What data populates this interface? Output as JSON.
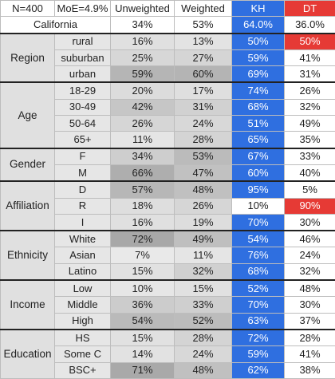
{
  "header": {
    "n": "N=400",
    "moe": "MoE=4.9%",
    "unweighted": "Unweighted",
    "weighted": "Weighted",
    "kh": "KH",
    "dt": "DT"
  },
  "california": {
    "label": "California",
    "unweighted": "34%",
    "weighted": "53%",
    "kh": "64.0%",
    "dt": "36.0%"
  },
  "groups": [
    {
      "name": "Region",
      "rows": [
        {
          "label": "rural",
          "unweighted": "16%",
          "weighted": "13%",
          "kh": "50%",
          "dt": "50%",
          "dt_hi": true
        },
        {
          "label": "suburban",
          "unweighted": "25%",
          "weighted": "27%",
          "kh": "59%",
          "dt": "41%"
        },
        {
          "label": "urban",
          "unweighted": "59%",
          "weighted": "60%",
          "kh": "69%",
          "dt": "31%"
        }
      ]
    },
    {
      "name": "Age",
      "rows": [
        {
          "label": "18-29",
          "unweighted": "20%",
          "weighted": "17%",
          "kh": "74%",
          "dt": "26%"
        },
        {
          "label": "30-49",
          "unweighted": "42%",
          "weighted": "31%",
          "kh": "68%",
          "dt": "32%"
        },
        {
          "label": "50-64",
          "unweighted": "26%",
          "weighted": "24%",
          "kh": "51%",
          "dt": "49%"
        },
        {
          "label": "65+",
          "unweighted": "11%",
          "weighted": "28%",
          "kh": "65%",
          "dt": "35%"
        }
      ]
    },
    {
      "name": "Gender",
      "rows": [
        {
          "label": "F",
          "unweighted": "34%",
          "weighted": "53%",
          "kh": "67%",
          "dt": "33%"
        },
        {
          "label": "M",
          "unweighted": "66%",
          "weighted": "47%",
          "kh": "60%",
          "dt": "40%"
        }
      ]
    },
    {
      "name": "Affiliation",
      "rows": [
        {
          "label": "D",
          "unweighted": "57%",
          "weighted": "48%",
          "kh": "95%",
          "dt": "5%"
        },
        {
          "label": "R",
          "unweighted": "18%",
          "weighted": "26%",
          "kh": "10%",
          "dt": "90%",
          "kh_hi": true,
          "dt_hi": true
        },
        {
          "label": "I",
          "unweighted": "16%",
          "weighted": "19%",
          "kh": "70%",
          "dt": "30%"
        }
      ]
    },
    {
      "name": "Ethnicity",
      "rows": [
        {
          "label": "White",
          "unweighted": "72%",
          "weighted": "49%",
          "kh": "54%",
          "dt": "46%"
        },
        {
          "label": "Asian",
          "unweighted": "7%",
          "weighted": "11%",
          "kh": "76%",
          "dt": "24%"
        },
        {
          "label": "Latino",
          "unweighted": "15%",
          "weighted": "32%",
          "kh": "68%",
          "dt": "32%"
        }
      ]
    },
    {
      "name": "Income",
      "rows": [
        {
          "label": "Low",
          "unweighted": "10%",
          "weighted": "15%",
          "kh": "52%",
          "dt": "48%"
        },
        {
          "label": "Middle",
          "unweighted": "36%",
          "weighted": "33%",
          "kh": "70%",
          "dt": "30%"
        },
        {
          "label": "High",
          "unweighted": "54%",
          "weighted": "52%",
          "kh": "63%",
          "dt": "37%"
        }
      ]
    },
    {
      "name": "Education",
      "rows": [
        {
          "label": "HS",
          "unweighted": "15%",
          "weighted": "28%",
          "kh": "72%",
          "dt": "28%"
        },
        {
          "label": "Some C",
          "unweighted": "14%",
          "weighted": "24%",
          "kh": "59%",
          "dt": "41%"
        },
        {
          "label": "BSC+",
          "unweighted": "71%",
          "weighted": "48%",
          "kh": "62%",
          "dt": "38%"
        }
      ]
    }
  ]
}
